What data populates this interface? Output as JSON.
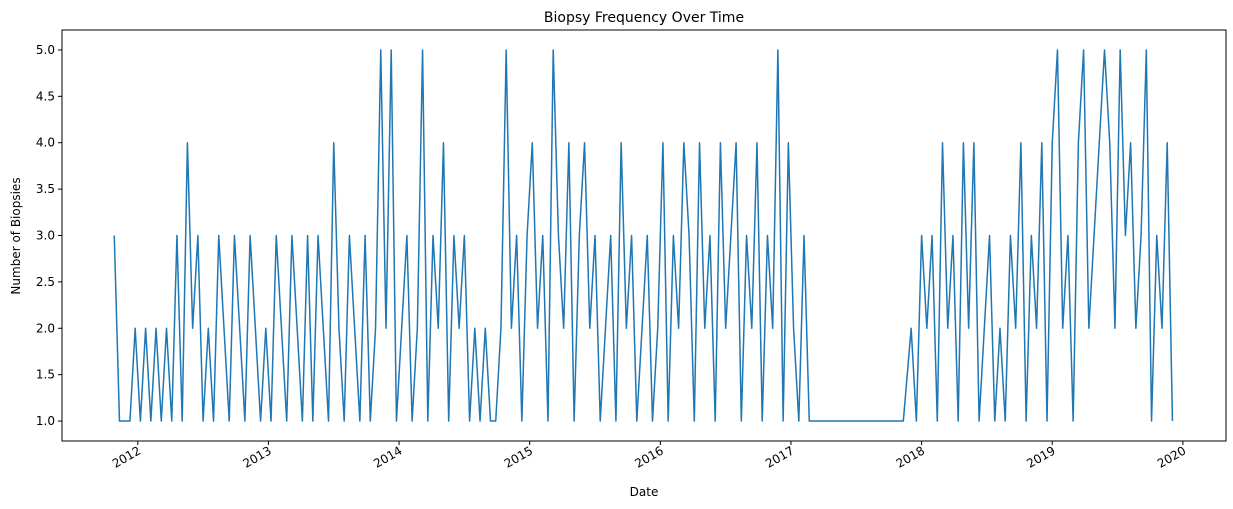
{
  "chart_data": {
    "type": "line",
    "title": "Biopsy Frequency Over Time",
    "xlabel": "Date",
    "ylabel": "Number of Biopsies",
    "color": "#1f77b4",
    "x": [
      2011.82,
      2011.86,
      2011.9,
      2011.94,
      2011.98,
      2012.02,
      2012.06,
      2012.1,
      2012.14,
      2012.18,
      2012.22,
      2012.26,
      2012.3,
      2012.34,
      2012.38,
      2012.42,
      2012.46,
      2012.5,
      2012.54,
      2012.58,
      2012.62,
      2012.66,
      2012.7,
      2012.74,
      2012.78,
      2012.82,
      2012.86,
      2012.9,
      2012.94,
      2012.98,
      2013.02,
      2013.06,
      2013.1,
      2013.14,
      2013.18,
      2013.22,
      2013.26,
      2013.3,
      2013.34,
      2013.38,
      2013.42,
      2013.46,
      2013.5,
      2013.54,
      2013.58,
      2013.62,
      2013.66,
      2013.7,
      2013.74,
      2013.78,
      2013.82,
      2013.86,
      2013.9,
      2013.94,
      2013.98,
      2014.02,
      2014.06,
      2014.1,
      2014.14,
      2014.18,
      2014.22,
      2014.26,
      2014.3,
      2014.34,
      2014.38,
      2014.42,
      2014.46,
      2014.5,
      2014.54,
      2014.58,
      2014.62,
      2014.66,
      2014.7,
      2014.74,
      2014.78,
      2014.82,
      2014.86,
      2014.9,
      2014.94,
      2014.98,
      2015.02,
      2015.06,
      2015.1,
      2015.14,
      2015.18,
      2015.22,
      2015.26,
      2015.3,
      2015.34,
      2015.38,
      2015.42,
      2015.46,
      2015.5,
      2015.54,
      2015.58,
      2015.62,
      2015.66,
      2015.7,
      2015.74,
      2015.78,
      2015.82,
      2015.86,
      2015.9,
      2015.94,
      2015.98,
      2016.02,
      2016.06,
      2016.1,
      2016.14,
      2016.18,
      2016.22,
      2016.26,
      2016.3,
      2016.34,
      2016.38,
      2016.42,
      2016.46,
      2016.5,
      2016.54,
      2016.58,
      2016.62,
      2016.66,
      2016.7,
      2016.74,
      2016.78,
      2016.82,
      2016.86,
      2016.9,
      2016.94,
      2016.98,
      2017.02,
      2017.06,
      2017.1,
      2017.14,
      2017.86,
      2017.92,
      2017.96,
      2018.0,
      2018.04,
      2018.08,
      2018.12,
      2018.16,
      2018.2,
      2018.24,
      2018.28,
      2018.32,
      2018.36,
      2018.4,
      2018.44,
      2018.48,
      2018.52,
      2018.56,
      2018.6,
      2018.64,
      2018.68,
      2018.72,
      2018.76,
      2018.8,
      2018.84,
      2018.88,
      2018.92,
      2018.96,
      2019.0,
      2019.04,
      2019.08,
      2019.12,
      2019.16,
      2019.2,
      2019.24,
      2019.28,
      2019.32,
      2019.36,
      2019.4,
      2019.44,
      2019.48,
      2019.52,
      2019.56,
      2019.6,
      2019.64,
      2019.68,
      2019.72,
      2019.76,
      2019.8,
      2019.84,
      2019.88,
      2019.92
    ],
    "values": [
      3,
      1,
      1,
      1,
      2,
      1,
      2,
      1,
      2,
      1,
      2,
      1,
      3,
      1,
      4,
      2,
      3,
      1,
      2,
      1,
      3,
      2,
      1,
      3,
      2,
      1,
      3,
      2,
      1,
      2,
      1,
      3,
      2,
      1,
      3,
      2,
      1,
      3,
      1,
      3,
      2,
      1,
      4,
      2,
      1,
      3,
      2,
      1,
      3,
      1,
      2,
      5,
      2,
      5,
      1,
      2,
      3,
      1,
      2,
      5,
      1,
      3,
      2,
      4,
      1,
      3,
      2,
      3,
      1,
      2,
      1,
      2,
      1,
      1,
      2,
      5,
      2,
      3,
      1,
      3,
      4,
      2,
      3,
      1,
      5,
      3,
      2,
      4,
      1,
      3,
      4,
      2,
      3,
      1,
      2,
      3,
      1,
      4,
      2,
      3,
      1,
      2,
      3,
      1,
      2,
      4,
      1,
      3,
      2,
      4,
      3,
      1,
      4,
      2,
      3,
      1,
      4,
      2,
      3,
      4,
      1,
      3,
      2,
      4,
      1,
      3,
      2,
      5,
      1,
      4,
      2,
      1,
      3,
      1,
      1,
      2,
      1,
      3,
      2,
      3,
      1,
      4,
      2,
      3,
      1,
      4,
      2,
      4,
      1,
      2,
      3,
      1,
      2,
      1,
      3,
      2,
      4,
      1,
      3,
      2,
      4,
      1,
      4,
      5,
      2,
      3,
      1,
      4,
      5,
      2,
      3,
      4,
      5,
      4,
      2,
      5,
      3,
      4,
      2,
      3,
      5,
      1,
      3,
      2,
      4,
      1
    ],
    "xlim": [
      2011.42,
      2020.33
    ],
    "xticks": [
      2012,
      2013,
      2014,
      2015,
      2016,
      2017,
      2018,
      2019,
      2020
    ],
    "ylim": [
      0.785,
      5.215
    ],
    "yticks": [
      {
        "value": 1,
        "label": "1.0"
      },
      {
        "value": 1.5,
        "label": "1.5"
      },
      {
        "value": 2,
        "label": "2.0"
      },
      {
        "value": 2.5,
        "label": "2.5"
      },
      {
        "value": 3,
        "label": "3.0"
      },
      {
        "value": 3.5,
        "label": "3.5"
      },
      {
        "value": 4,
        "label": "4.0"
      },
      {
        "value": 4.5,
        "label": "4.5"
      },
      {
        "value": 5,
        "label": "5.0"
      }
    ]
  }
}
